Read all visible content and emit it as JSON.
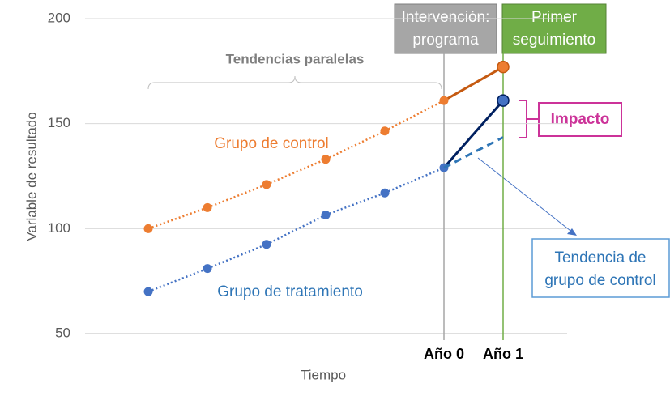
{
  "chart_data": {
    "type": "line",
    "categories": [
      null,
      null,
      null,
      null,
      null,
      "Año 0",
      "Año 1"
    ],
    "series": [
      {
        "name": "Grupo de control",
        "color": "#ED7D31",
        "highlight_color": "#C55A11",
        "values": [
          100,
          110,
          121,
          133,
          146.5,
          161,
          177
        ]
      },
      {
        "name": "Grupo de tratamiento",
        "color": "#4472C4",
        "highlight_color": "#002060",
        "values": [
          70,
          81,
          92.5,
          106.5,
          117,
          129,
          161
        ]
      },
      {
        "name": [
          "Tendencia de",
          "grupo de control"
        ],
        "color": "#2E75B6",
        "dashed": true,
        "values": [
          null,
          null,
          null,
          null,
          null,
          129,
          143.5
        ]
      }
    ],
    "ylim": [
      50,
      200
    ],
    "yticks": [
      50,
      100,
      150,
      200
    ],
    "grid": true,
    "y_label": "Variable de resultado",
    "x_label": "Tiempo",
    "annotations": {
      "intervention": [
        "Intervención:",
        "programa"
      ],
      "follow_up": [
        "Primer",
        "seguimiento"
      ],
      "parallel": "Tendencias paralelas",
      "impact": "Impacto"
    }
  }
}
